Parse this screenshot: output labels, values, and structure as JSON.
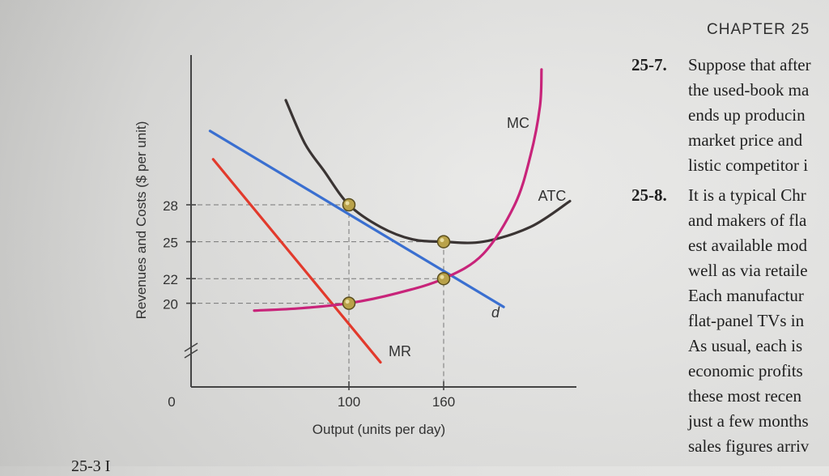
{
  "chapter_header": "CHAPTER 25",
  "problems": [
    {
      "number": "25-7.",
      "lines": [
        "Suppose that after",
        "the used-book ma",
        "ends up producin",
        "market price and",
        "listic competitor i"
      ]
    },
    {
      "number": "25-8.",
      "lines": [
        "It is a typical Chr",
        "and makers of fla",
        "est available mod",
        "well as via retaile",
        "Each manufactur",
        "flat-panel TVs in",
        "As usual, each is",
        "economic profits",
        "these most recen",
        "just a few months",
        "sales figures arriv"
      ]
    }
  ],
  "bottom_cut_text": "25-3  I",
  "chart_data": {
    "type": "line",
    "xlabel": "Output (units per day)",
    "ylabel": "Revenues and Costs ($ per unit)",
    "origin_label": "0",
    "x_ticks": [
      100,
      160
    ],
    "y_ticks": [
      20,
      22,
      25,
      28
    ],
    "y_axis_break": true,
    "series": [
      {
        "name": "d",
        "color": "#3a6fd0",
        "points": [
          [
            12,
            34
          ],
          [
            198,
            19.7
          ]
        ]
      },
      {
        "name": "MR",
        "color": "#e23a2c",
        "points": [
          [
            14,
            31.7
          ],
          [
            120,
            15.2
          ]
        ]
      },
      {
        "name": "ATC",
        "color": "#3a3433",
        "points": [
          [
            60,
            36.5
          ],
          [
            72,
            33
          ],
          [
            84,
            30.8
          ],
          [
            100,
            28
          ],
          [
            120,
            26.2
          ],
          [
            140,
            25.2
          ],
          [
            160,
            25
          ],
          [
            185,
            25
          ],
          [
            215,
            26.2
          ],
          [
            240,
            28.3
          ]
        ]
      },
      {
        "name": "MC",
        "color": "#c8247a",
        "points": [
          [
            40,
            19.4
          ],
          [
            70,
            19.6
          ],
          [
            100,
            20
          ],
          [
            130,
            20.8
          ],
          [
            160,
            22
          ],
          [
            185,
            24
          ],
          [
            205,
            28
          ],
          [
            215,
            32
          ],
          [
            221,
            36
          ],
          [
            222,
            39
          ]
        ]
      }
    ],
    "points_marked": [
      {
        "x": 100,
        "y": 28
      },
      {
        "x": 160,
        "y": 25
      },
      {
        "x": 160,
        "y": 22
      },
      {
        "x": 100,
        "y": 20
      }
    ]
  }
}
